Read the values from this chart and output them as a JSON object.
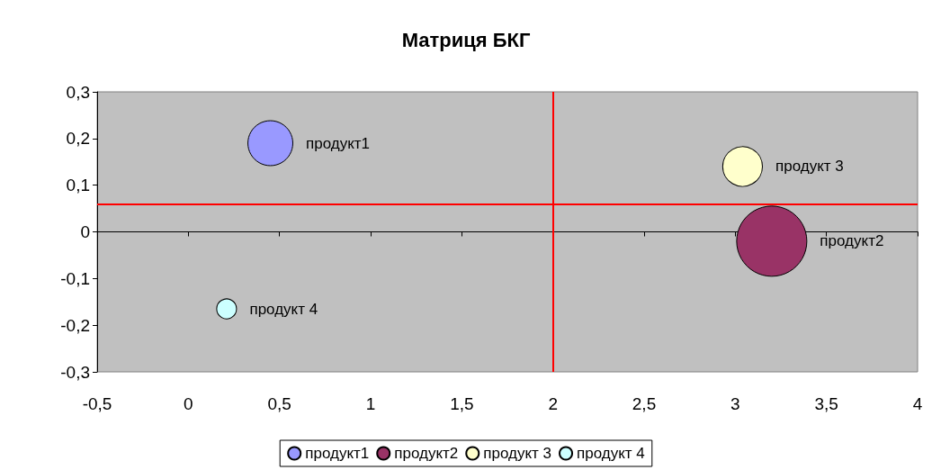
{
  "chart_data": {
    "type": "bubble",
    "title": "Матриця БКГ",
    "xlim": [
      -0.5,
      4
    ],
    "xticks": [
      {
        "value": -0.5,
        "label": "-0,5"
      },
      0,
      {
        "value": 0.5,
        "label": "0,5"
      },
      1,
      {
        "value": 1.5,
        "label": "1,5"
      },
      2,
      {
        "value": 2.5,
        "label": "2,5"
      },
      3,
      {
        "value": 3.5,
        "label": "3,5"
      },
      4
    ],
    "ylim": [
      -0.3,
      0.3
    ],
    "yticks": [
      {
        "value": -0.3,
        "label": "-0,3"
      },
      {
        "value": -0.2,
        "label": "-0,2"
      },
      {
        "value": -0.1,
        "label": "-0,1"
      },
      0,
      {
        "value": 0.1,
        "label": "0,1"
      },
      {
        "value": 0.2,
        "label": "0,2"
      },
      {
        "value": 0.3,
        "label": "0,3"
      }
    ],
    "series": [
      {
        "name": "продукт1",
        "color": "#9999ff",
        "x": [
          0.45
        ],
        "values": [
          0.19
        ],
        "sizes": [
          0.41
        ]
      },
      {
        "name": "продукт2",
        "color": "#993366",
        "x": [
          3.2
        ],
        "values": [
          -0.02
        ],
        "sizes": [
          1
        ]
      },
      {
        "name": "продукт 3",
        "color": "#ffffcc",
        "x": [
          3.04
        ],
        "values": [
          0.14
        ],
        "sizes": [
          0.32
        ]
      },
      {
        "name": "продукт 4",
        "color": "#ccffff",
        "x": [
          0.21
        ],
        "values": [
          -0.165
        ],
        "sizes": [
          0.08
        ]
      }
    ],
    "ref_lines": [
      {
        "axis": "x",
        "value": 2,
        "color": "#ff0000"
      },
      {
        "axis": "y",
        "value": 0.06,
        "color": "#ff0000"
      }
    ],
    "grid": false,
    "legend": "bottom"
  }
}
